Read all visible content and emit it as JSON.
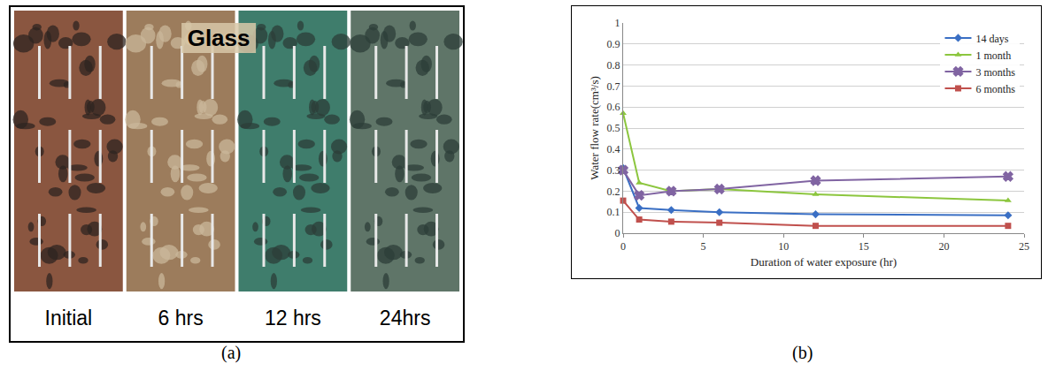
{
  "photo_panel": {
    "overlay_text": "Glass",
    "labels": [
      "Initial",
      "6 hrs",
      "12 hrs",
      "24hrs"
    ]
  },
  "captions": [
    "(a)",
    "(b)"
  ],
  "chart_data": {
    "type": "line",
    "x_label": "Duration of water exposure (hr)",
    "y_label": "Water flow rate(cm³/s)",
    "xlim": [
      0,
      25
    ],
    "xticks": [
      0,
      5,
      10,
      15,
      20,
      25
    ],
    "ylim": [
      0,
      1
    ],
    "yticks": [
      0,
      0.1,
      0.2,
      0.3,
      0.4,
      0.5,
      0.6,
      0.7,
      0.8,
      0.9,
      1
    ],
    "grid": true,
    "legend": "top-right",
    "series": [
      {
        "name": "14 days",
        "color": "#3a6fc4",
        "marker": "diamond",
        "x": [
          0,
          1,
          3,
          6,
          12,
          24
        ],
        "values": [
          0.31,
          0.12,
          0.11,
          0.1,
          0.09,
          0.085
        ]
      },
      {
        "name": "1 month",
        "color": "#8cc63e",
        "marker": "triangle-up",
        "x": [
          0,
          1,
          3,
          6,
          12,
          24
        ],
        "values": [
          0.57,
          0.24,
          0.2,
          0.21,
          0.185,
          0.155
        ]
      },
      {
        "name": "3 months",
        "color": "#8064a2",
        "marker": "x",
        "x": [
          0,
          1,
          3,
          6,
          12,
          24
        ],
        "values": [
          0.3,
          0.18,
          0.2,
          0.21,
          0.25,
          0.27
        ]
      },
      {
        "name": "6 months",
        "color": "#c0504d",
        "marker": "square",
        "x": [
          0,
          1,
          3,
          6,
          12,
          24
        ],
        "values": [
          0.155,
          0.065,
          0.055,
          0.05,
          0.035,
          0.035
        ]
      }
    ]
  }
}
